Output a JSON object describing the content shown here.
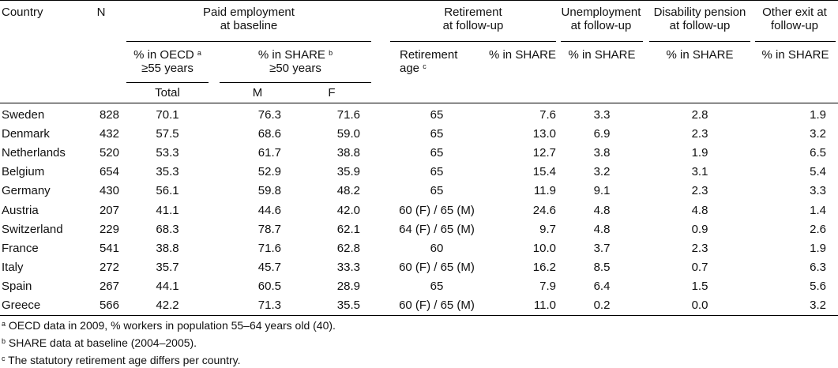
{
  "headers": {
    "country": "Country",
    "n": "N",
    "paid_employment": [
      "Paid employment",
      "at baseline"
    ],
    "retirement": [
      "Retirement",
      "at follow-up"
    ],
    "unemployment": [
      "Unemployment",
      "at follow-up"
    ],
    "disability": [
      "Disability pension",
      "at follow-up"
    ],
    "other_exit": [
      "Other exit at",
      "follow-up"
    ],
    "oecd": [
      "% in OECD ",
      "a",
      "≥55 years"
    ],
    "share": [
      "% in SHARE ",
      "b",
      "≥50 years"
    ],
    "retirement_age": [
      "Retirement",
      "age ",
      "c"
    ],
    "pct_share": "% in SHARE",
    "total": "Total",
    "m": "M",
    "f": "F"
  },
  "rows": [
    [
      "Sweden",
      "828",
      "70.1",
      "76.3",
      "71.6",
      "65",
      "7.6",
      "3.3",
      "2.8",
      "1.9"
    ],
    [
      "Denmark",
      "432",
      "57.5",
      "68.6",
      "59.0",
      "65",
      "13.0",
      "6.9",
      "2.3",
      "3.2"
    ],
    [
      "Netherlands",
      "520",
      "53.3",
      "61.7",
      "38.8",
      "65",
      "12.7",
      "3.8",
      "1.9",
      "6.5"
    ],
    [
      "Belgium",
      "654",
      "35.3",
      "52.9",
      "35.9",
      "65",
      "15.4",
      "3.2",
      "3.1",
      "5.4"
    ],
    [
      "Germany",
      "430",
      "56.1",
      "59.8",
      "48.2",
      "65",
      "11.9",
      "9.1",
      "2.3",
      "3.3"
    ],
    [
      "Austria",
      "207",
      "41.1",
      "44.6",
      "42.0",
      "60 (F) / 65 (M)",
      "24.6",
      "4.8",
      "4.8",
      "1.4"
    ],
    [
      "Switzerland",
      "229",
      "68.3",
      "78.7",
      "62.1",
      "64 (F) / 65 (M)",
      "9.7",
      "4.8",
      "0.9",
      "2.6"
    ],
    [
      "France",
      "541",
      "38.8",
      "71.6",
      "62.8",
      "60",
      "10.0",
      "3.7",
      "2.3",
      "1.9"
    ],
    [
      "Italy",
      "272",
      "35.7",
      "45.7",
      "33.3",
      "60 (F) / 65 (M)",
      "16.2",
      "8.5",
      "0.7",
      "6.3"
    ],
    [
      "Spain",
      "267",
      "44.1",
      "60.5",
      "28.9",
      "65",
      "7.9",
      "6.4",
      "1.5",
      "5.6"
    ],
    [
      "Greece",
      "566",
      "42.2",
      "71.3",
      "35.5",
      "60 (F) / 65 (M)",
      "11.0",
      "0.2",
      "0.0",
      "3.2"
    ]
  ],
  "footnotes": [
    {
      "mark": "a",
      "text": " OECD data in 2009, % workers in population 55–64 years old (40)."
    },
    {
      "mark": "b",
      "text": " SHARE data at baseline (2004–2005)."
    },
    {
      "mark": "c",
      "text": " The statutory retirement age differs per country."
    }
  ]
}
